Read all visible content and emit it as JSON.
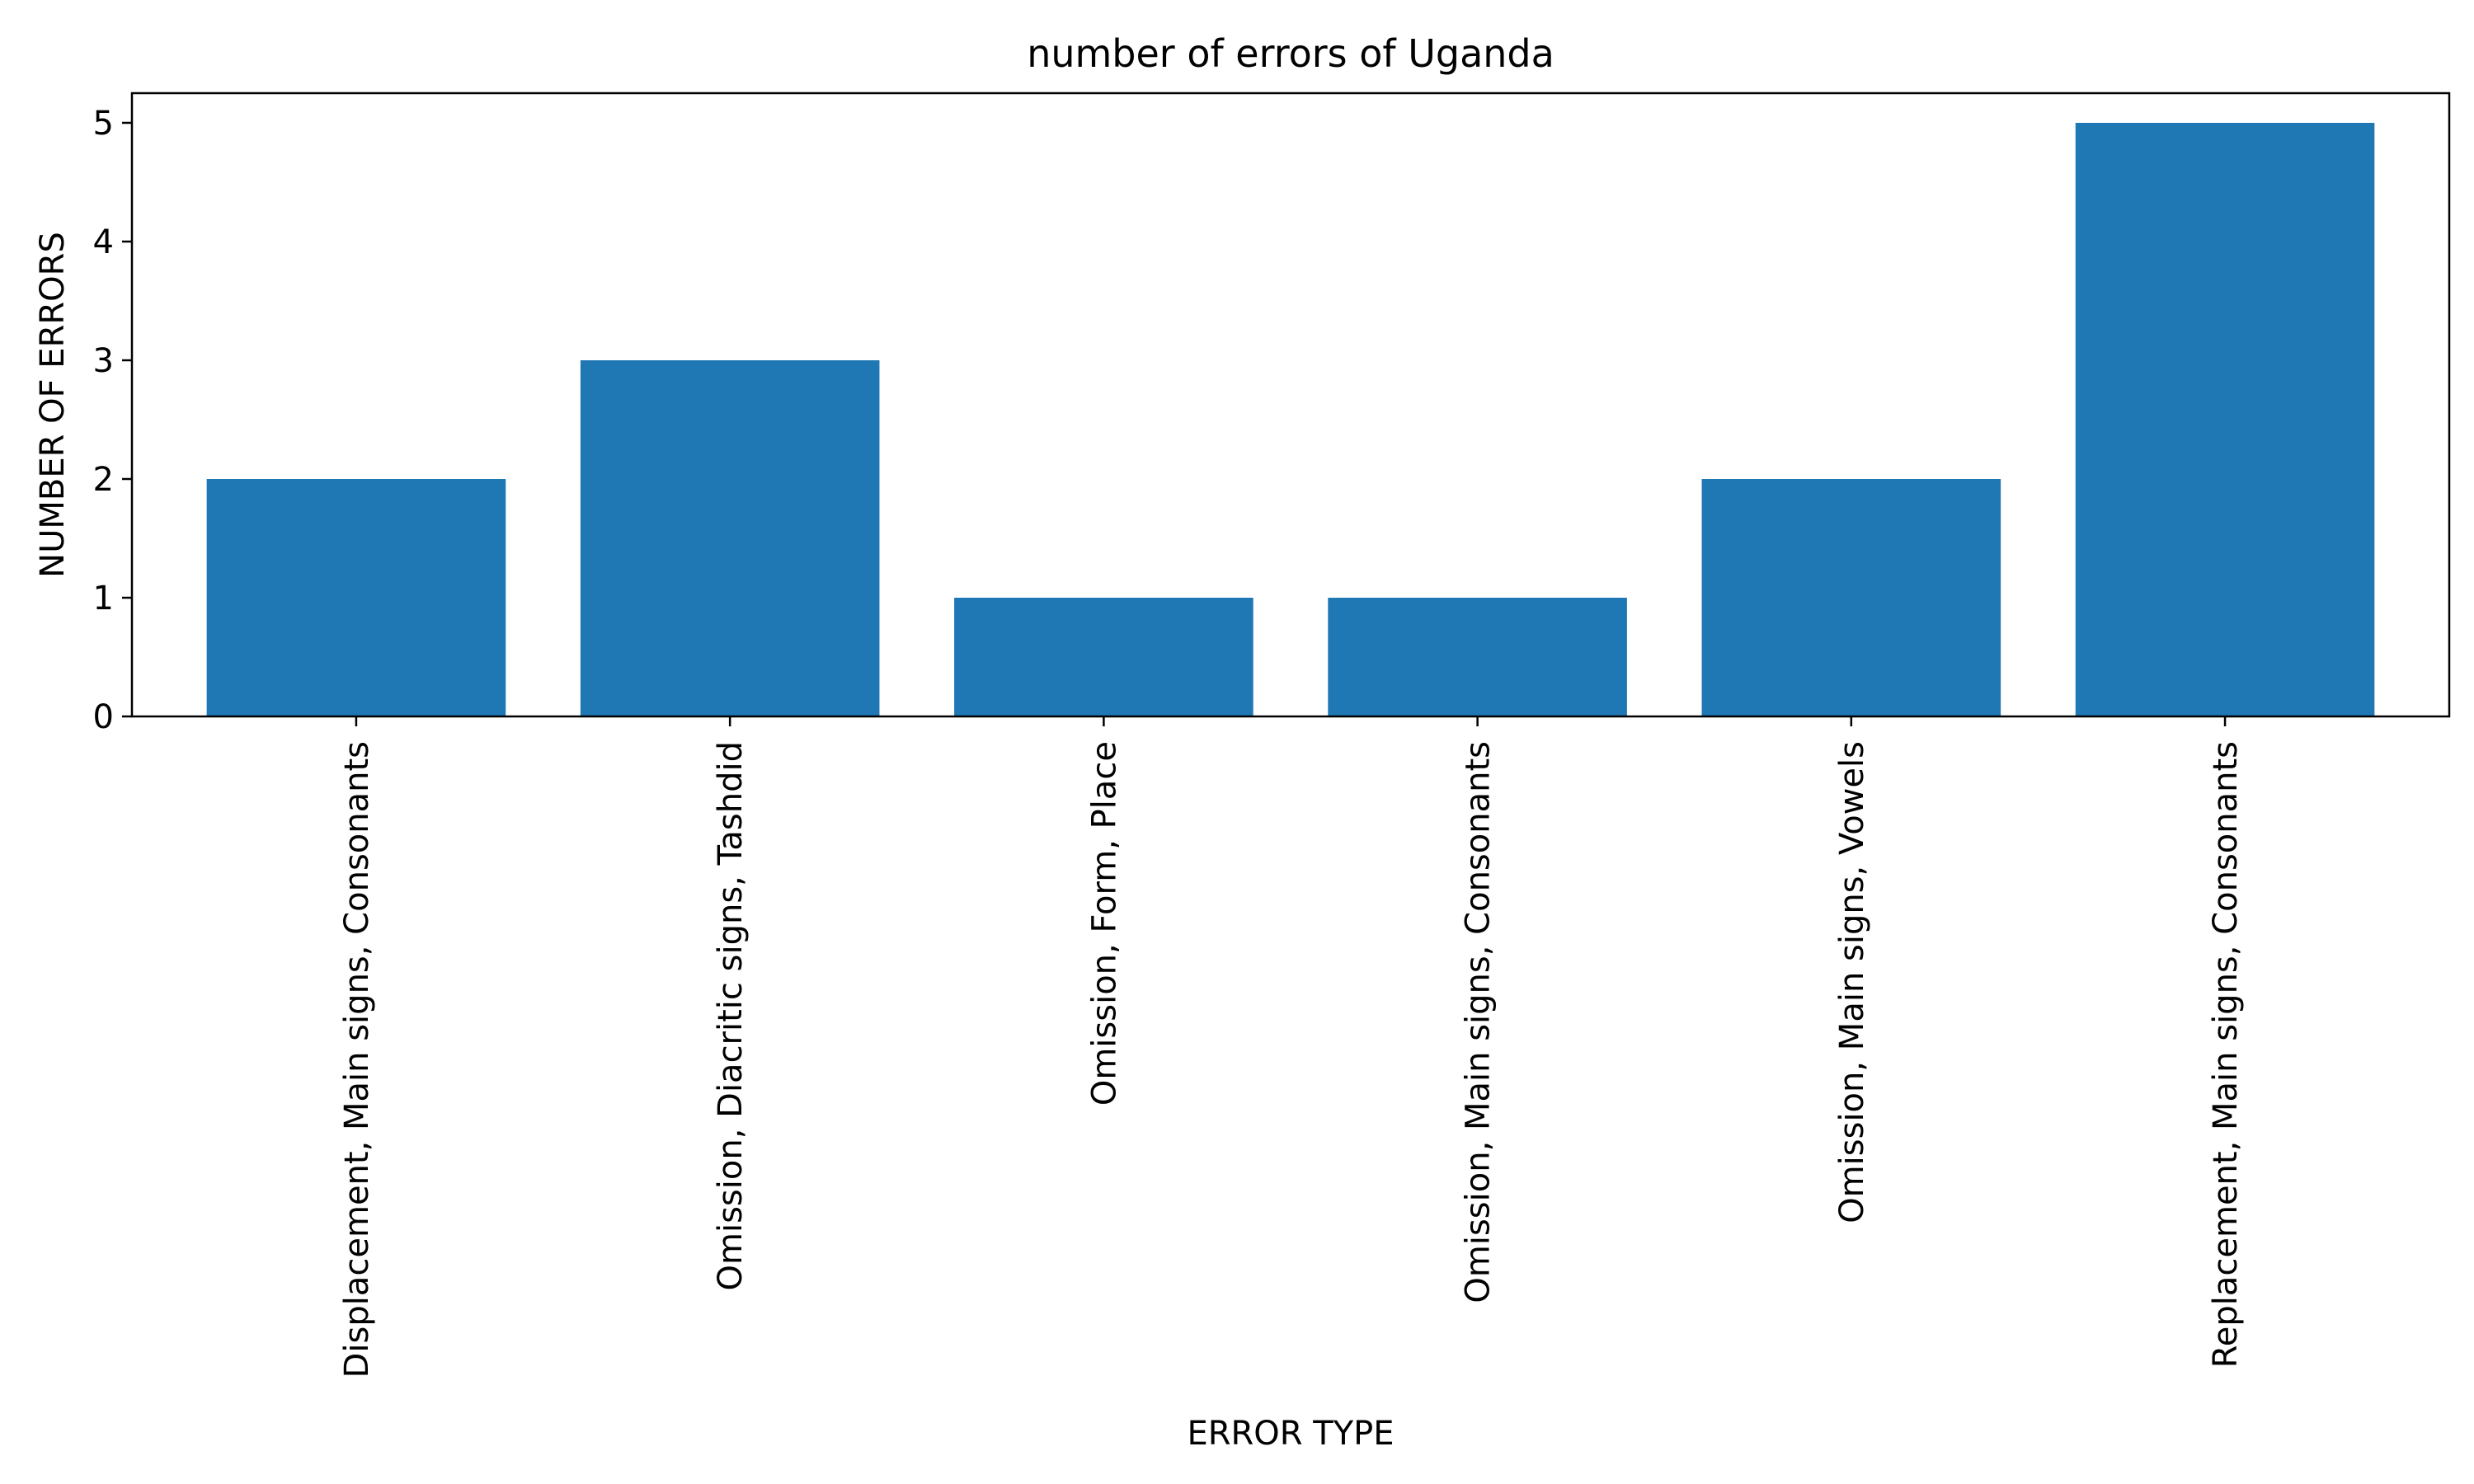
{
  "chart_data": {
    "type": "bar",
    "title": "number of errors of Uganda",
    "xlabel": "ERROR TYPE",
    "ylabel": "NUMBER OF ERRORS",
    "categories": [
      "Displacement, Main signs, Consonants",
      "Omission, Diacritic signs, Tashdid",
      "Omission, Form, Place",
      "Omission, Main signs, Consonants",
      "Omission, Main signs, Vowels",
      "Replacement, Main signs, Consonants"
    ],
    "values": [
      2,
      3,
      1,
      1,
      2,
      5
    ],
    "yticks": [
      0,
      1,
      2,
      3,
      4,
      5
    ],
    "ylim": [
      0,
      5.25
    ],
    "grid": false,
    "bar_color": "#1f77b4"
  }
}
